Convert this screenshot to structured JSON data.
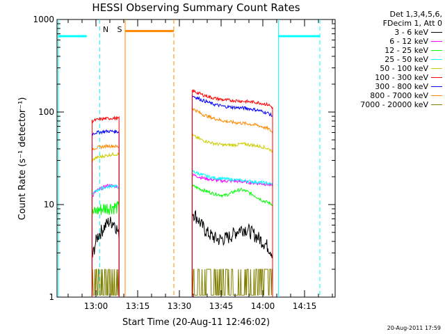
{
  "chart_data": {
    "type": "line",
    "title": "HESSI Observing Summary Count Rates",
    "xlabel": "Start Time (20-Aug-11 12:46:02)",
    "ylabel": "Count Rate (s⁻¹ detector⁻¹)",
    "yscale": "log",
    "ylim": [
      1,
      1000
    ],
    "xlim_minutes": [
      0,
      100
    ],
    "x_ticks": [
      {
        "m": 14,
        "label": "13:00"
      },
      {
        "m": 29,
        "label": "13:15"
      },
      {
        "m": 44,
        "label": "13:30"
      },
      {
        "m": 59,
        "label": "13:45"
      },
      {
        "m": 74,
        "label": "14:00"
      },
      {
        "m": 89,
        "label": "14:15"
      }
    ],
    "y_ticks": [
      {
        "v": 1,
        "label": "1"
      },
      {
        "v": 10,
        "label": "10"
      },
      {
        "v": 100,
        "label": "100"
      },
      {
        "v": 1000,
        "label": "1000"
      }
    ],
    "legend_header": [
      "Det 1,3,4,5,6,",
      "FDecim 1, Att 0"
    ],
    "series": [
      {
        "name": "3 - 6 keV",
        "color": "#000000",
        "segments": [
          [
            [
              12.6,
              2.6
            ],
            [
              13.5,
              3.5
            ],
            [
              14.5,
              4.5
            ],
            [
              15.5,
              5
            ],
            [
              16.5,
              5.5
            ],
            [
              17.5,
              6
            ],
            [
              18.5,
              6.5
            ],
            [
              19.5,
              6.5
            ],
            [
              20.5,
              6.5
            ],
            [
              21.5,
              5.5
            ],
            [
              22.3,
              4.5
            ]
          ],
          [
            [
              48.6,
              8.5
            ],
            [
              50,
              7.5
            ],
            [
              52,
              6
            ],
            [
              54,
              5
            ],
            [
              56,
              4.5
            ],
            [
              58,
              4.2
            ],
            [
              60,
              4.3
            ],
            [
              62,
              4.5
            ],
            [
              64,
              5
            ],
            [
              66,
              5.5
            ],
            [
              68,
              5.5
            ],
            [
              70,
              5
            ],
            [
              72,
              4.5
            ],
            [
              74,
              4
            ],
            [
              76,
              3.5
            ],
            [
              77.5,
              3
            ]
          ]
        ]
      },
      {
        "name": "6 - 12 keV",
        "color": "#ff00ff",
        "segments": [
          [
            [
              12.6,
              12
            ],
            [
              14,
              14
            ],
            [
              16,
              15
            ],
            [
              18,
              16
            ],
            [
              20,
              16
            ],
            [
              22.3,
              15.5
            ]
          ],
          [
            [
              48.6,
              21
            ],
            [
              52,
              19.5
            ],
            [
              56,
              18.5
            ],
            [
              60,
              18
            ],
            [
              64,
              18
            ],
            [
              68,
              17.5
            ],
            [
              72,
              17
            ],
            [
              76,
              16.5
            ],
            [
              77.5,
              16
            ]
          ]
        ]
      },
      {
        "name": "12 - 25 keV",
        "color": "#00ff00",
        "segments": [
          [
            [
              12.6,
              8
            ],
            [
              14,
              8.5
            ],
            [
              16,
              9
            ],
            [
              18,
              9.3
            ],
            [
              20,
              9.5
            ],
            [
              22.3,
              9.3
            ]
          ],
          [
            [
              48.6,
              16
            ],
            [
              52,
              14.5
            ],
            [
              56,
              13.2
            ],
            [
              60,
              12.5
            ],
            [
              62,
              13
            ],
            [
              64,
              14
            ],
            [
              66,
              14.5
            ],
            [
              68,
              14
            ],
            [
              70,
              13
            ],
            [
              72,
              12
            ],
            [
              74,
              11
            ],
            [
              76,
              10.5
            ],
            [
              77.5,
              10
            ]
          ]
        ]
      },
      {
        "name": "25 - 50 keV",
        "color": "#00ffff",
        "segments": [
          [
            [
              12.6,
              13
            ],
            [
              14,
              14
            ],
            [
              16,
              15
            ],
            [
              18,
              15.5
            ],
            [
              20,
              16
            ],
            [
              22.3,
              15.5
            ]
          ],
          [
            [
              48.6,
              23
            ],
            [
              52,
              21
            ],
            [
              56,
              19.5
            ],
            [
              60,
              19
            ],
            [
              64,
              18.5
            ],
            [
              68,
              18
            ],
            [
              72,
              17.5
            ],
            [
              76,
              17
            ],
            [
              77.5,
              16.5
            ]
          ]
        ]
      },
      {
        "name": "50 - 100 keV",
        "color": "#cccc00",
        "segments": [
          [
            [
              12.6,
              30
            ],
            [
              14,
              32
            ],
            [
              16,
              33
            ],
            [
              18,
              34
            ],
            [
              20,
              35
            ],
            [
              22.3,
              35
            ]
          ],
          [
            [
              48.6,
              56
            ],
            [
              52,
              50
            ],
            [
              56,
              46
            ],
            [
              60,
              44
            ],
            [
              64,
              44
            ],
            [
              66,
              45
            ],
            [
              68,
              45
            ],
            [
              70,
              44
            ],
            [
              72,
              43
            ],
            [
              74,
              42
            ],
            [
              76,
              40
            ],
            [
              77.5,
              38
            ]
          ]
        ]
      },
      {
        "name": "100 - 300 keV",
        "color": "#ff0000",
        "segments": [
          [
            [
              12.6,
              80
            ],
            [
              14,
              82
            ],
            [
              16,
              84
            ],
            [
              18,
              85
            ],
            [
              20,
              86
            ],
            [
              22.3,
              85
            ]
          ],
          [
            [
              48.6,
              170
            ],
            [
              52,
              155
            ],
            [
              56,
              142
            ],
            [
              60,
              135
            ],
            [
              64,
              133
            ],
            [
              68,
              130
            ],
            [
              72,
              127
            ],
            [
              76,
              120
            ],
            [
              77.5,
              112
            ]
          ]
        ]
      },
      {
        "name": "300 - 800 keV",
        "color": "#0000ff",
        "segments": [
          [
            [
              12.6,
              58
            ],
            [
              14,
              60
            ],
            [
              16,
              61
            ],
            [
              18,
              62
            ],
            [
              20,
              62
            ],
            [
              22.3,
              61
            ]
          ],
          [
            [
              48.6,
              150
            ],
            [
              52,
              135
            ],
            [
              56,
              122
            ],
            [
              60,
              115
            ],
            [
              64,
              112
            ],
            [
              68,
              110
            ],
            [
              72,
              105
            ],
            [
              76,
              97
            ],
            [
              77.5,
              90
            ]
          ]
        ]
      },
      {
        "name": "800 - 7000 keV",
        "color": "#ff8800",
        "segments": [
          [
            [
              12.6,
              40
            ],
            [
              14,
              41
            ],
            [
              16,
              42
            ],
            [
              18,
              43
            ],
            [
              20,
              43
            ],
            [
              22.3,
              42
            ]
          ],
          [
            [
              48.6,
              110
            ],
            [
              52,
              95
            ],
            [
              56,
              86
            ],
            [
              60,
              80
            ],
            [
              64,
              77
            ],
            [
              68,
              75
            ],
            [
              72,
              72
            ],
            [
              76,
              66
            ],
            [
              77.5,
              60
            ]
          ]
        ]
      },
      {
        "name": "7000 - 20000 keV",
        "color": "#808000",
        "segments": [
          [
            [
              12.6,
              1.5
            ],
            [
              22.3,
              1.5
            ]
          ],
          [
            [
              48.6,
              1.5
            ],
            [
              77.5,
              1.5
            ]
          ]
        ]
      }
    ],
    "flags": [
      {
        "name": "N",
        "color": "#00ffff",
        "levels": [
          [
            0.5,
            10.7,
            660
          ],
          [
            79.6,
            94.5,
            660
          ]
        ],
        "solid_lines": [
          0.5,
          79.6
        ],
        "dashed_lines": [
          15.4,
          94.5
        ],
        "label_m": 17.5
      },
      {
        "name": "S",
        "color": "#ff8800",
        "levels": [
          [
            24.5,
            42,
            750
          ]
        ],
        "solid_lines": [
          24.5
        ],
        "dashed_lines": [
          42
        ],
        "label_m": 22.5
      }
    ]
  },
  "footer": "20-Aug-2011 17:59"
}
